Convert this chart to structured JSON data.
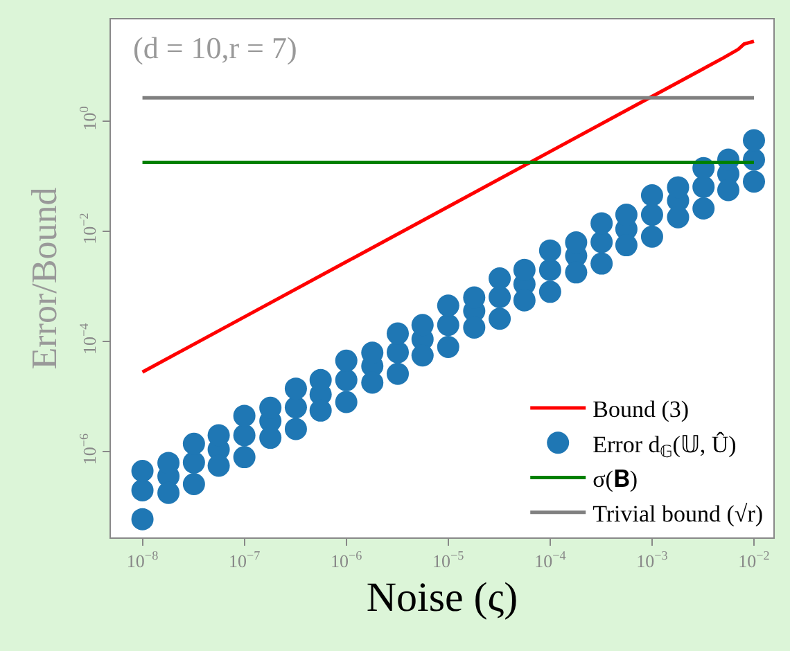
{
  "chart_data": {
    "type": "line",
    "xlabel": "Noise (ς)",
    "ylabel": "Error/Bound",
    "annotations": [
      "(d = 10,r = 7)"
    ],
    "log": "xy",
    "legend": "bottom right",
    "xlim": [
      4.9e-09,
      0.0155
    ],
    "ylim": [
      2.8e-08,
      70
    ],
    "xticks": [
      {
        "value": 1e-08,
        "label": "10$^{−8}$"
      },
      {
        "value": 1e-07,
        "label": "10$^{−7}$"
      },
      {
        "value": 1e-06,
        "label": "10$^{−6}$"
      },
      {
        "value": 1e-05,
        "label": "10$^{−5}$"
      },
      {
        "value": 0.0001,
        "label": "10$^{−4}$"
      },
      {
        "value": 0.001,
        "label": "10$^{−3}$"
      },
      {
        "value": 0.01,
        "label": "10$^{−2}$"
      }
    ],
    "yticks": [
      {
        "value": 1e-06,
        "label": "10$^{−6}$"
      },
      {
        "value": 0.0001,
        "label": "10$^{−4}$"
      },
      {
        "value": 0.01,
        "label": "10$^{−2}$"
      },
      {
        "value": 1,
        "label": "10$^{0}$"
      }
    ],
    "series": [
      {
        "name": "Bound (3)",
        "color": "#ff0000",
        "x": [
          1e-08,
          1e-07,
          1e-06,
          1e-05,
          0.0001,
          0.001,
          0.005,
          0.007,
          0.008,
          0.01
        ],
        "values": [
          2.8e-05,
          0.00028,
          0.0028,
          0.028,
          0.28,
          2.8,
          14,
          20,
          25,
          28
        ]
      },
      {
        "name": "Error d$_{𝔾}$(𝕌, Û)",
        "type": "scatter",
        "marker": "circle",
        "color": "#1f77b4",
        "x": [
          1e-08,
          1e-08,
          1e-08,
          1.8e-08,
          3.2e-08,
          3.2e-08,
          3.2e-08,
          5.6e-08,
          1e-07,
          1e-07,
          1e-07,
          1.8e-07,
          3.2e-07,
          3.2e-07,
          3.2e-07,
          5.6e-07,
          1e-06,
          1e-06,
          1e-06,
          1.8e-06,
          3.2e-06,
          3.2e-06,
          3.2e-06,
          5.6e-06,
          1e-05,
          1e-05,
          1e-05,
          1.8e-05,
          3.2e-05,
          3.2e-05,
          3.2e-05,
          5.6e-05,
          0.0001,
          0.0001,
          0.0001,
          0.00018,
          0.00032,
          0.00032,
          0.00032,
          0.00056,
          0.001,
          0.001,
          0.001,
          0.0018,
          0.0032,
          0.0032,
          0.0032,
          0.0056,
          0.01,
          0.01,
          0.01,
          1.8e-08,
          5.6e-08,
          1.8e-07,
          5.6e-07,
          1.8e-06,
          5.6e-06,
          1.8e-05,
          5.6e-05,
          0.00018,
          0.00056,
          0.0018,
          0.0056,
          1.8e-08,
          5.6e-08,
          1.8e-07,
          5.6e-07,
          1.8e-06,
          5.6e-06,
          1.8e-05,
          5.6e-05,
          0.00018,
          0.00056,
          0.0018,
          0.0056
        ],
        "values": [
          6e-08,
          2e-07,
          4.5e-07,
          3.6e-07,
          2.6e-07,
          6.4e-07,
          1.4e-06,
          1.1e-06,
          8e-07,
          2e-06,
          4.5e-06,
          3.6e-06,
          2.6e-06,
          6.4e-06,
          1.4e-05,
          1.1e-05,
          8e-06,
          2e-05,
          4.5e-05,
          3.6e-05,
          2.6e-05,
          6.4e-05,
          0.00014,
          0.00011,
          8e-05,
          0.0002,
          0.00045,
          0.00036,
          0.00026,
          0.00064,
          0.0014,
          0.0011,
          0.0008,
          0.002,
          0.0045,
          0.0036,
          0.0026,
          0.0064,
          0.014,
          0.011,
          0.008,
          0.02,
          0.045,
          0.036,
          0.026,
          0.064,
          0.14,
          0.11,
          0.08,
          0.2,
          0.45,
          1.8e-07,
          5.6e-07,
          1.8e-06,
          5.6e-06,
          1.8e-05,
          5.6e-05,
          0.00018,
          0.00056,
          0.0018,
          0.0056,
          0.018,
          0.056,
          6.3e-07,
          2e-06,
          6.3e-06,
          2e-05,
          6.3e-05,
          0.0002,
          0.00063,
          0.002,
          0.0063,
          0.02,
          0.063,
          0.2
        ]
      },
      {
        "name": "σ(𝐁)",
        "color": "#008000",
        "x": [
          1e-08,
          0.001,
          0.01
        ],
        "values": [
          0.178,
          0.178,
          0.178
        ]
      },
      {
        "name": "Trivial bound (√r)",
        "color": "#808080",
        "x": [
          1e-08,
          0.01
        ],
        "values": [
          2.65,
          2.65
        ]
      }
    ]
  }
}
